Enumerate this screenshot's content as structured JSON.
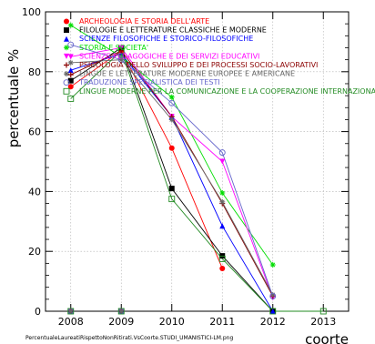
{
  "chart_data": {
    "type": "line",
    "xlabel": "coorte",
    "ylabel": "percentuale %",
    "x": [
      2008,
      2009,
      2010,
      2011,
      2012,
      2013
    ],
    "x_tick_labels": [
      "2008",
      "2009",
      "2010",
      "2011",
      "2012",
      "2013"
    ],
    "xlim": [
      2007.5,
      2013.5
    ],
    "ylim": [
      0,
      100
    ],
    "y_ticks": [
      0,
      20,
      40,
      60,
      80,
      100
    ],
    "y_tick_labels": [
      "0",
      "20",
      "40",
      "60",
      "80",
      "100"
    ],
    "grid": true,
    "legend_position": "top",
    "footer": "PercentualeLaureatiRispettoNonRitirati.VsCoorte.STUDI_UMANISTICI-LM.png",
    "series": [
      {
        "name": "ARCHEOLOGIA E STORIA DELL'ARTE",
        "color": "#ff0000",
        "marker": "circle-filled",
        "values": [
          75,
          87,
          54.5,
          14.3,
          null,
          null
        ],
        "zero_markers": [
          2008,
          2009
        ]
      },
      {
        "name": "FILOLOGIE E LETTERATURE CLASSICHE E MODERNE",
        "color": "#000000",
        "marker": "square-filled",
        "values": [
          77,
          88,
          41,
          18.5,
          0,
          null
        ],
        "zero_markers": [
          2008,
          2009
        ]
      },
      {
        "name": "SCIENZE FILOSOFICHE E STORICO-FILOSOFICHE",
        "color": "#0000ff",
        "marker": "triangle-filled",
        "values": [
          80.5,
          86,
          65,
          28.5,
          0,
          null
        ],
        "zero_markers": [
          2008,
          2009
        ]
      },
      {
        "name": "STORIA E SOCIETA'",
        "color": "#00dd00",
        "marker": "star",
        "values": [
          95.5,
          85,
          71.5,
          39.5,
          15.5,
          null
        ],
        "zero_markers": [
          2008,
          2009
        ]
      },
      {
        "name": "SCIENZE PEDAGOGICHE E DEI SERVIZI EDUCATIVI",
        "color": "#ff00ff",
        "marker": "triangle-down",
        "values": [
          85,
          88,
          65,
          50,
          4.5,
          null
        ],
        "zero_markers": [
          2008,
          2009
        ]
      },
      {
        "name": "PSICOLOGIA DELLO SVILUPPO E DEI PROCESSI SOCIO-LAVORATIVI",
        "color": "#8b0000",
        "marker": "cross",
        "values": [
          79,
          87,
          65,
          36,
          5,
          null
        ],
        "zero_markers": [
          2008,
          2009
        ]
      },
      {
        "name": "LINGUE E LETTERATURE MODERNE EUROPEE E AMERICANE",
        "color": "#666666",
        "marker": "star",
        "values": [
          83,
          84,
          64,
          36.5,
          5.5,
          null
        ],
        "zero_markers": [
          2008,
          2009
        ]
      },
      {
        "name": "TRADUZIONE SPECIALISTICA DEI TESTI",
        "color": "#6666cc",
        "marker": "circle-open",
        "values": [
          89,
          84,
          69.5,
          53,
          5,
          null
        ],
        "zero_markers": [
          2008,
          2009
        ]
      },
      {
        "name": "LINGUE MODERNE PER LA COMUNICAZIONE E LA COOPERAZIONE INTERNAZIONALE",
        "color": "#228b22",
        "marker": "square-open",
        "values": [
          71,
          87,
          37.5,
          17.5,
          0,
          0
        ],
        "zero_markers": [
          2008,
          2009
        ]
      }
    ]
  }
}
